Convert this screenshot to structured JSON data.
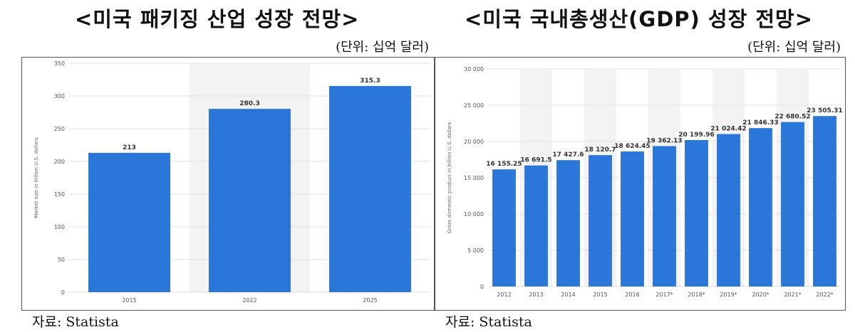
{
  "colors": {
    "bar": "#2a77d9",
    "grid": "#e2e2e2",
    "band": "#f3f3f3"
  },
  "left": {
    "title": "<미국 패키징 산업 성장 전망>",
    "unit": "(단위: 십억 달러)",
    "source": "자료: Statista"
  },
  "right": {
    "title": "<미국 국내총생산(GDP) 성장 전망>",
    "unit": "(단위: 십억 달러)",
    "source": "자료: Statista"
  },
  "chart_data": [
    {
      "type": "bar",
      "categories": [
        "2015",
        "2022",
        "2025"
      ],
      "values": [
        213,
        280.3,
        315.3
      ],
      "value_labels": [
        "213",
        "280.3",
        "315.3"
      ],
      "ylabel": "Market size in billion U.S. dollars",
      "ylim": [
        0,
        350
      ],
      "yticks": [
        0,
        50,
        100,
        150,
        200,
        250,
        300,
        350
      ],
      "ytick_labels": [
        "0",
        "50",
        "100",
        "150",
        "200",
        "250",
        "300",
        "350"
      ],
      "grid": true,
      "banded": true
    },
    {
      "type": "bar",
      "categories": [
        "2012",
        "2013",
        "2014",
        "2015",
        "2016",
        "2017*",
        "2018*",
        "2019*",
        "2020*",
        "2021*",
        "2022*"
      ],
      "values": [
        16155.25,
        16691.5,
        17427.6,
        18120.7,
        18624.45,
        19362.13,
        20199.96,
        21024.42,
        21846.33,
        22680.52,
        23505.31
      ],
      "value_labels": [
        "16 155.25",
        "16 691.5",
        "17 427.6",
        "18 120.7",
        "18 624.45",
        "19 362.13",
        "20 199.96",
        "21 024.42",
        "21 846.33",
        "22 680.52",
        "23 505.31"
      ],
      "ylabel": "Gross domestic product in billion U.S. dollars",
      "ylim": [
        0,
        30000
      ],
      "yticks": [
        0,
        5000,
        10000,
        15000,
        20000,
        25000,
        30000
      ],
      "ytick_labels": [
        "0",
        "5 000",
        "10 000",
        "15 000",
        "20 000",
        "25 000",
        "30 000"
      ],
      "grid": true,
      "banded": true
    }
  ]
}
